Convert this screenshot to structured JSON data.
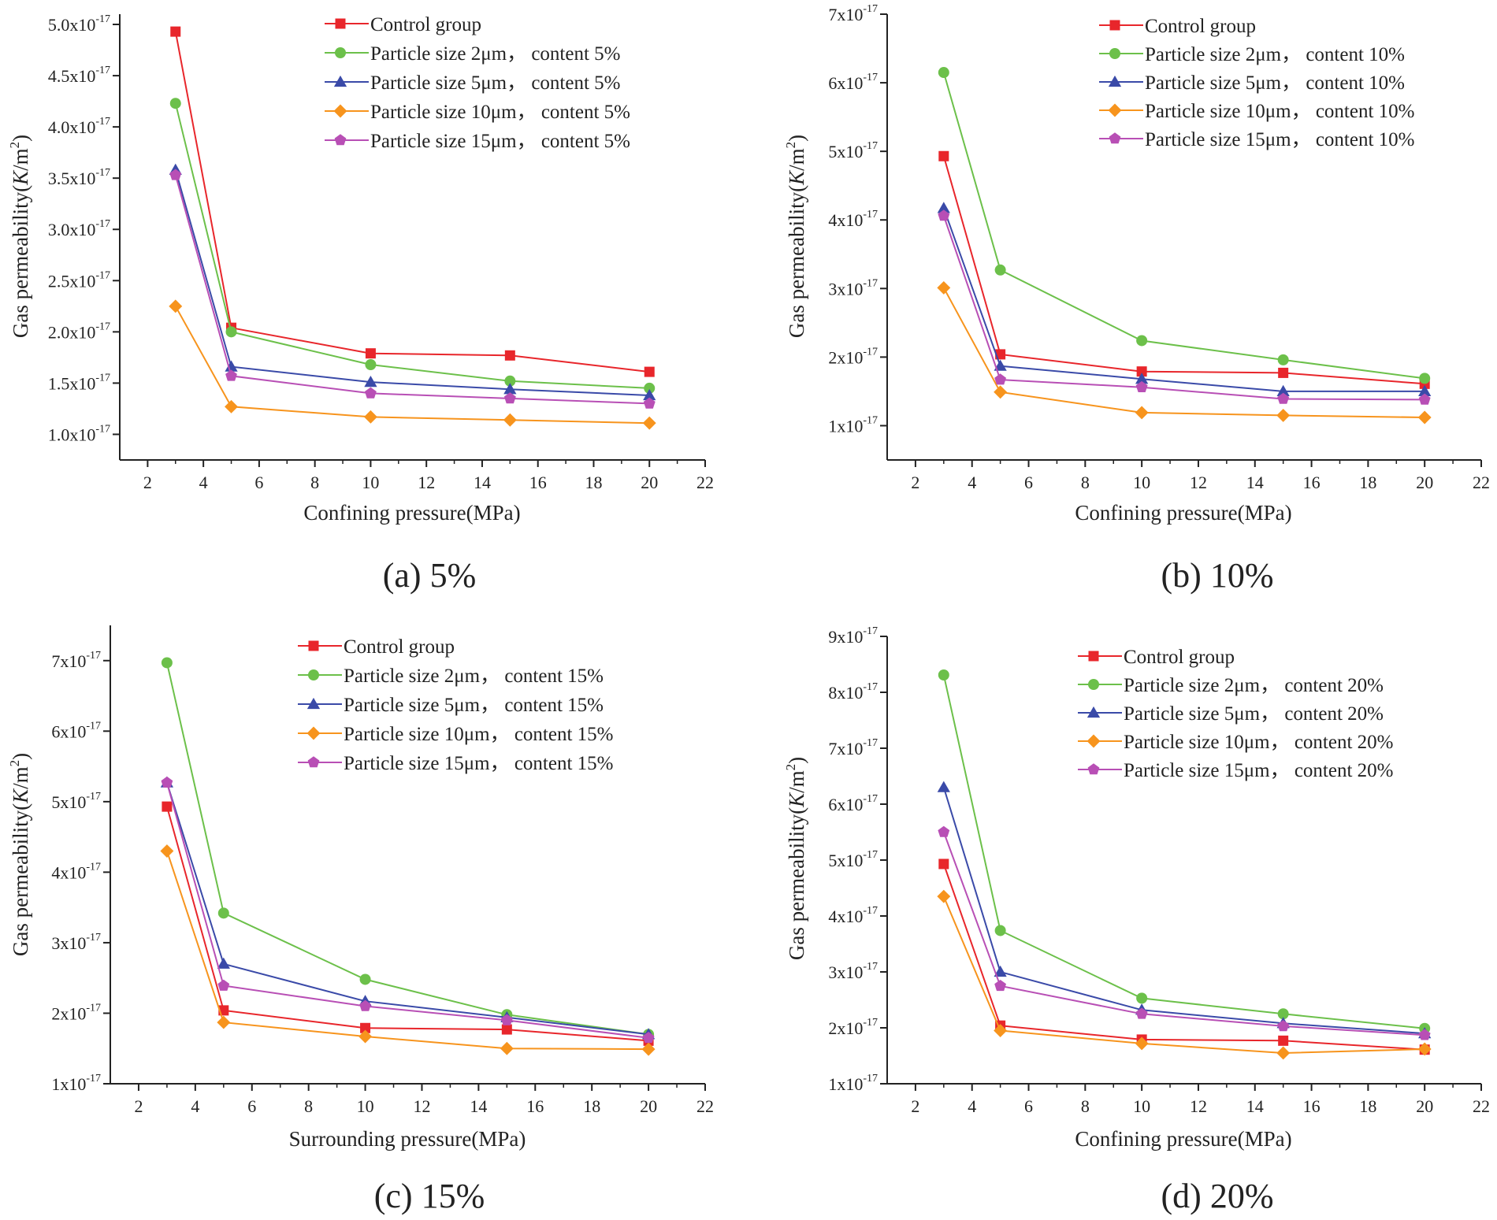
{
  "colors": {
    "control": "#e8262b",
    "p2": "#6cc04a",
    "p5": "#3a4aa8",
    "p10": "#f7941d",
    "p15": "#b84fb5"
  },
  "chart_data": [
    {
      "type": "line",
      "caption": "(a) 5%",
      "xlabel": "Confining  pressure(MPa)",
      "ylabel_prefix": "Gas permeability(",
      "ylabel_k": "K",
      "ylabel_unit": "/m",
      "ylabel_sup": "2",
      "ylabel_suffix": ")",
      "x": [
        3,
        5,
        10,
        15,
        20
      ],
      "xlim": [
        1,
        22
      ],
      "ylim": [
        0.75,
        5.1
      ],
      "xticks": [
        2,
        4,
        6,
        8,
        10,
        12,
        14,
        16,
        18,
        20,
        22
      ],
      "yticks": [
        1.0,
        1.5,
        2.0,
        2.5,
        3.0,
        3.5,
        4.0,
        4.5,
        5.0
      ],
      "ytick_labels": [
        "1.0x10",
        "1.5x10",
        "2.0x10",
        "2.5x10",
        "3.0x10",
        "3.5x10",
        "4.0x10",
        "4.5x10",
        "5.0x10"
      ],
      "ytick_exp": "-17",
      "series": [
        {
          "name": "Control group",
          "color_key": "control",
          "marker": "square",
          "values": [
            4.93,
            2.04,
            1.79,
            1.77,
            1.61
          ]
        },
        {
          "name": "Particle size   2μm，  content 5%",
          "color_key": "p2",
          "marker": "circle",
          "values": [
            4.23,
            2.0,
            1.68,
            1.52,
            1.45
          ]
        },
        {
          "name": "Particle size   5μm，  content 5%",
          "color_key": "p5",
          "marker": "triangle",
          "values": [
            3.58,
            1.66,
            1.51,
            1.44,
            1.38
          ]
        },
        {
          "name": "Particle size 10μm，  content 5%",
          "color_key": "p10",
          "marker": "diamond",
          "values": [
            2.25,
            1.27,
            1.17,
            1.14,
            1.11
          ]
        },
        {
          "name": "Particle size 15μm，  content 5%",
          "color_key": "p15",
          "marker": "pentagon",
          "values": [
            3.53,
            1.57,
            1.4,
            1.35,
            1.3
          ]
        }
      ]
    },
    {
      "type": "line",
      "caption": "(b) 10%",
      "xlabel": "Confining pressure(MPa)",
      "ylabel_prefix": "Gas permeability(",
      "ylabel_k": "K",
      "ylabel_unit": "/m",
      "ylabel_sup": "2",
      "ylabel_suffix": ")",
      "x": [
        3,
        5,
        10,
        15,
        20
      ],
      "xlim": [
        1,
        22
      ],
      "ylim": [
        0.5,
        7.0
      ],
      "xticks": [
        2,
        4,
        6,
        8,
        10,
        12,
        14,
        16,
        18,
        20,
        22
      ],
      "yticks": [
        1,
        2,
        3,
        4,
        5,
        6,
        7
      ],
      "ytick_labels": [
        "1x10",
        "2x10",
        "3x10",
        "4x10",
        "5x10",
        "6x10",
        "7x10"
      ],
      "ytick_exp": "-17",
      "series": [
        {
          "name": "Control group",
          "color_key": "control",
          "marker": "square",
          "values": [
            4.93,
            2.04,
            1.79,
            1.77,
            1.61
          ]
        },
        {
          "name": "Particle size   2μm，  content 10%",
          "color_key": "p2",
          "marker": "circle",
          "values": [
            6.15,
            3.27,
            2.24,
            1.96,
            1.69
          ]
        },
        {
          "name": "Particle size   5μm，  content 10%",
          "color_key": "p5",
          "marker": "triangle",
          "values": [
            4.17,
            1.87,
            1.68,
            1.5,
            1.5
          ]
        },
        {
          "name": "Particle size 10μm，  content 10%",
          "color_key": "p10",
          "marker": "diamond",
          "values": [
            3.01,
            1.49,
            1.19,
            1.15,
            1.12
          ]
        },
        {
          "name": "Particle size 15μm，  content 10%",
          "color_key": "p15",
          "marker": "pentagon",
          "values": [
            4.06,
            1.67,
            1.56,
            1.39,
            1.38
          ]
        }
      ]
    },
    {
      "type": "line",
      "caption": "(c) 15%",
      "xlabel": "Surrounding pressure(MPa)",
      "ylabel_prefix": "Gas permeability(",
      "ylabel_k": "K",
      "ylabel_unit": "/m",
      "ylabel_sup": "2",
      "ylabel_suffix": ")",
      "x": [
        3,
        5,
        10,
        15,
        20
      ],
      "xlim": [
        1,
        22
      ],
      "ylim": [
        1.0,
        7.5
      ],
      "xticks": [
        2,
        4,
        6,
        8,
        10,
        12,
        14,
        16,
        18,
        20,
        22
      ],
      "yticks": [
        1,
        2,
        3,
        4,
        5,
        6,
        7
      ],
      "ytick_labels": [
        "1x10",
        "2x10",
        "3x10",
        "4x10",
        "5x10",
        "6x10",
        "7x10"
      ],
      "ytick_exp": "-17",
      "series": [
        {
          "name": "Control group",
          "color_key": "control",
          "marker": "square",
          "values": [
            4.93,
            2.04,
            1.79,
            1.77,
            1.61
          ]
        },
        {
          "name": "Particle size   2μm，  content 15%",
          "color_key": "p2",
          "marker": "circle",
          "values": [
            6.97,
            3.42,
            2.48,
            1.98,
            1.7
          ]
        },
        {
          "name": "Particle size   5μm，  content 15%",
          "color_key": "p5",
          "marker": "triangle",
          "values": [
            5.27,
            2.7,
            2.17,
            1.94,
            1.7
          ]
        },
        {
          "name": "Particle size 10μm，  content 15%",
          "color_key": "p10",
          "marker": "diamond",
          "values": [
            4.3,
            1.87,
            1.67,
            1.5,
            1.49
          ]
        },
        {
          "name": "Particle size 15μm，  content 15%",
          "color_key": "p15",
          "marker": "pentagon",
          "values": [
            5.27,
            2.39,
            2.1,
            1.9,
            1.65
          ]
        }
      ]
    },
    {
      "type": "line",
      "caption": "(d) 20%",
      "xlabel": "Confining pressure(MPa)",
      "ylabel_prefix": "Gas permeability(",
      "ylabel_k": "K",
      "ylabel_unit": "/m",
      "ylabel_sup": "2",
      "ylabel_suffix": ")",
      "x": [
        3,
        5,
        10,
        15,
        20
      ],
      "xlim": [
        1,
        22
      ],
      "ylim": [
        1.0,
        9.0
      ],
      "xticks": [
        2,
        4,
        6,
        8,
        10,
        12,
        14,
        16,
        18,
        20,
        22
      ],
      "yticks": [
        1,
        2,
        3,
        4,
        5,
        6,
        7,
        8,
        9
      ],
      "ytick_labels": [
        "1x10",
        "2x10",
        "3x10",
        "4x10",
        "5x10",
        "6x10",
        "7x10",
        "8x10",
        "9x10"
      ],
      "ytick_exp": "-17",
      "series": [
        {
          "name": "Control group",
          "color_key": "control",
          "marker": "square",
          "values": [
            4.93,
            2.04,
            1.79,
            1.77,
            1.61
          ]
        },
        {
          "name": "Particle size   2μm，  content 20%",
          "color_key": "p2",
          "marker": "circle",
          "values": [
            8.31,
            3.74,
            2.53,
            2.25,
            1.99
          ]
        },
        {
          "name": "Particle size   5μm，  content 20%",
          "color_key": "p5",
          "marker": "triangle",
          "values": [
            6.3,
            3.0,
            2.32,
            2.08,
            1.9
          ]
        },
        {
          "name": "Particle size 10μm，  content 20%",
          "color_key": "p10",
          "marker": "diamond",
          "values": [
            4.35,
            1.95,
            1.72,
            1.55,
            1.62
          ]
        },
        {
          "name": "Particle size 15μm，  content 20%",
          "color_key": "p15",
          "marker": "pentagon",
          "values": [
            5.5,
            2.75,
            2.25,
            2.03,
            1.87
          ]
        }
      ]
    }
  ]
}
